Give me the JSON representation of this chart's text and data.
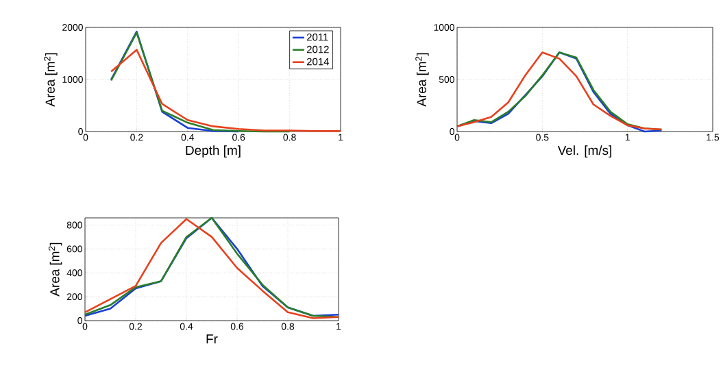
{
  "chart_data": [
    {
      "type": "line",
      "xlabel": "Depth [m]",
      "ylabel": "Area [m$^{2}$]",
      "x": [
        0.1,
        0.2,
        0.3,
        0.4,
        0.5,
        0.6,
        0.7,
        0.8,
        0.9,
        1.0
      ],
      "xlim": [
        0,
        1
      ],
      "ylim": [
        0,
        2000
      ],
      "xticks": [
        0,
        0.2,
        0.4,
        0.6,
        0.8,
        1
      ],
      "yticks": [
        0,
        1000,
        2000
      ],
      "grid": true,
      "legend": "top right",
      "series": [
        {
          "name": "2011",
          "color": "#1a3fd6",
          "values": [
            1000,
            1920,
            380,
            70,
            10,
            0,
            null,
            null,
            null,
            null
          ]
        },
        {
          "name": "2012",
          "color": "#2a7d2a",
          "values": [
            980,
            1900,
            400,
            170,
            30,
            10,
            0,
            0,
            null,
            null
          ]
        },
        {
          "name": "2014",
          "color": "#e8401c",
          "values": [
            1150,
            1570,
            530,
            220,
            100,
            50,
            20,
            20,
            10,
            10
          ]
        }
      ]
    },
    {
      "type": "line",
      "xlabel": "Vel. [m/s]",
      "ylabel": "Area [m$^{2}$]",
      "x": [
        0,
        0.1,
        0.2,
        0.3,
        0.4,
        0.5,
        0.6,
        0.7,
        0.8,
        0.9,
        1.0,
        1.1,
        1.2
      ],
      "xlim": [
        0,
        1.5
      ],
      "ylim": [
        0,
        1000
      ],
      "xticks": [
        0,
        0.5,
        1,
        1.5
      ],
      "yticks": [
        0,
        500,
        1000
      ],
      "grid": true,
      "series": [
        {
          "color": "#1a3fd6",
          "values": [
            50,
            100,
            80,
            170,
            350,
            530,
            760,
            700,
            380,
            170,
            60,
            0,
            10
          ]
        },
        {
          "color": "#2a7d2a",
          "values": [
            50,
            110,
            90,
            190,
            340,
            540,
            760,
            710,
            400,
            190,
            70,
            30,
            20
          ]
        },
        {
          "color": "#e8401c",
          "values": [
            50,
            90,
            140,
            280,
            540,
            760,
            700,
            530,
            260,
            150,
            60,
            30,
            20
          ]
        }
      ]
    },
    {
      "type": "line",
      "xlabel": "Fr",
      "ylabel": "Area [m$^{2}$]",
      "x": [
        0,
        0.1,
        0.2,
        0.3,
        0.4,
        0.5,
        0.6,
        0.7,
        0.8,
        0.9,
        1.0
      ],
      "xlim": [
        0,
        1
      ],
      "ylim": [
        0,
        860
      ],
      "xticks": [
        0,
        0.2,
        0.4,
        0.6,
        0.8,
        1
      ],
      "yticks": [
        0,
        200,
        400,
        600,
        800
      ],
      "grid": true,
      "series": [
        {
          "color": "#1a3fd6",
          "values": [
            40,
            100,
            270,
            330,
            690,
            860,
            600,
            290,
            110,
            40,
            50
          ]
        },
        {
          "color": "#2a7d2a",
          "values": [
            50,
            130,
            280,
            330,
            700,
            860,
            560,
            300,
            110,
            40,
            30
          ]
        },
        {
          "color": "#e8401c",
          "values": [
            70,
            180,
            290,
            650,
            850,
            700,
            440,
            250,
            70,
            20,
            30
          ]
        }
      ]
    }
  ]
}
